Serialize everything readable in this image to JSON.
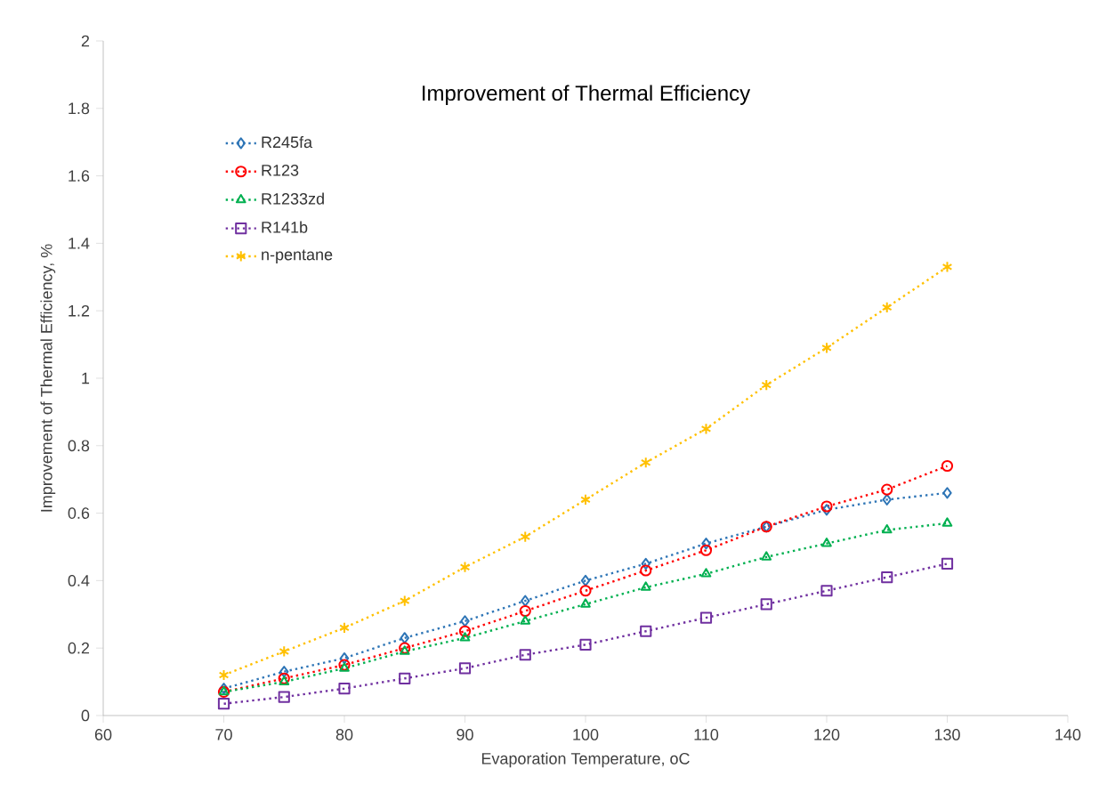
{
  "chart_data": {
    "type": "line",
    "title": "Improvement of  Thermal Efficiency",
    "xlabel": "Evaporation Temperature, oC",
    "ylabel": "Improvement of Thermal Efficiency, %",
    "x": [
      70,
      75,
      80,
      85,
      90,
      95,
      100,
      105,
      110,
      115,
      120,
      125,
      130
    ],
    "series": [
      {
        "name": "R245fa",
        "color": "#2e75b6",
        "marker": "diamond",
        "values": [
          0.08,
          0.13,
          0.17,
          0.23,
          0.28,
          0.34,
          0.4,
          0.45,
          0.51,
          0.56,
          0.61,
          0.64,
          0.66
        ]
      },
      {
        "name": "R123",
        "color": "#ff0000",
        "marker": "circle",
        "values": [
          0.07,
          0.11,
          0.15,
          0.2,
          0.25,
          0.31,
          0.37,
          0.43,
          0.49,
          0.56,
          0.62,
          0.67,
          0.74
        ]
      },
      {
        "name": "R1233zd",
        "color": "#00b050",
        "marker": "triangle",
        "values": [
          0.07,
          0.1,
          0.14,
          0.19,
          0.23,
          0.28,
          0.33,
          0.38,
          0.42,
          0.47,
          0.51,
          0.55,
          0.57
        ]
      },
      {
        "name": "R141b",
        "color": "#7030a0",
        "marker": "square",
        "values": [
          0.035,
          0.055,
          0.08,
          0.11,
          0.14,
          0.18,
          0.21,
          0.25,
          0.29,
          0.33,
          0.37,
          0.41,
          0.45
        ]
      },
      {
        "name": "n-pentane",
        "color": "#ffc000",
        "marker": "cross",
        "values": [
          0.12,
          0.19,
          0.26,
          0.34,
          0.44,
          0.53,
          0.64,
          0.75,
          0.85,
          0.98,
          1.09,
          1.21,
          1.33
        ]
      }
    ],
    "xlim": [
      60,
      140
    ],
    "xticks": [
      60,
      70,
      80,
      90,
      100,
      110,
      120,
      130,
      140
    ],
    "ylim": [
      0,
      2
    ],
    "yticks": [
      0,
      0.2,
      0.4,
      0.6,
      0.8,
      1,
      1.2,
      1.4,
      1.6,
      1.8,
      2
    ],
    "grid": false,
    "legend": "top left",
    "line_style": "dotted"
  }
}
